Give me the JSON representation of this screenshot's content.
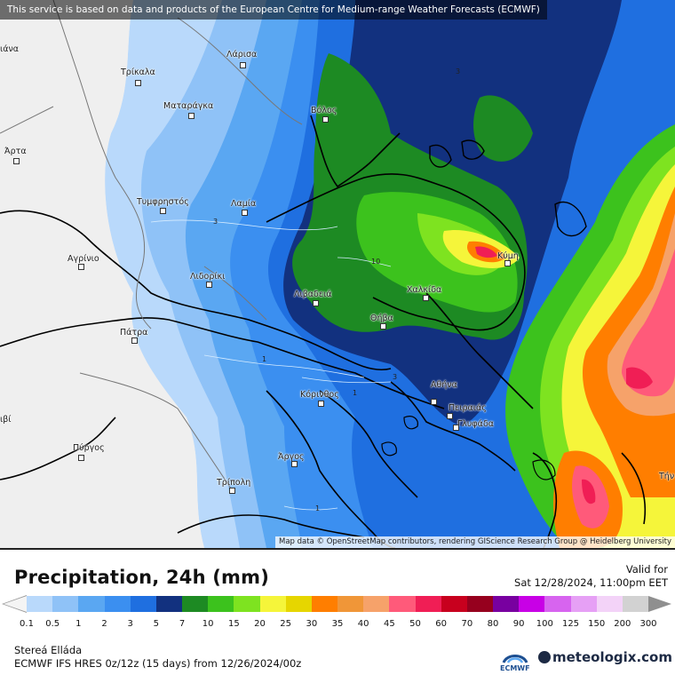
{
  "map": {
    "notice": "This service is based on data and products of the European Centre for Medium-range Weather Forecasts (ECMWF)",
    "attribution": "Map data © OpenStreetMap contributors, rendering GIScience Research Group @ Heidelberg University",
    "cities": [
      {
        "name": "Τρίκαλα"
      },
      {
        "name": "Λάρισα"
      },
      {
        "name": "Βόλος"
      },
      {
        "name": "Ματαράγκα"
      },
      {
        "name": "Άρτα"
      },
      {
        "name": "Τυμφρηστός"
      },
      {
        "name": "Λαμία"
      },
      {
        "name": "Αγρίνιο"
      },
      {
        "name": "Λιδορίκι"
      },
      {
        "name": "Λιβαδειά"
      },
      {
        "name": "Χαλκίδα"
      },
      {
        "name": "Κύμη"
      },
      {
        "name": "Θήβα"
      },
      {
        "name": "Πάτρα"
      },
      {
        "name": "Κόρινθος"
      },
      {
        "name": "Αθήνα"
      },
      {
        "name": "Πειραιάς"
      },
      {
        "name": "Γλυφάδα"
      },
      {
        "name": "Πύργος"
      },
      {
        "name": "Άργος"
      },
      {
        "name": "Τρίπολη"
      }
    ],
    "edge_labels": {
      "left_top": "ιάνα",
      "left_bottom": "ιβί",
      "right_bottom": "Τήν"
    },
    "contour_labels": {
      "c3a": "3",
      "c3b": "3",
      "c10": "10",
      "c1a": "1",
      "c1b": "1",
      "c3c": "3",
      "c1c": "1"
    }
  },
  "legend": {
    "title": "Precipitation, 24h (mm)",
    "valid_label": "Valid for",
    "valid_time": "Sat 12/28/2024, 11:00pm EET",
    "ticks": [
      "0.1",
      "0.5",
      "1",
      "2",
      "3",
      "5",
      "7",
      "10",
      "15",
      "20",
      "25",
      "30",
      "35",
      "40",
      "45",
      "50",
      "60",
      "70",
      "80",
      "90",
      "100",
      "125",
      "150",
      "200",
      "300"
    ],
    "colors": [
      "#b9d9fb",
      "#8fc2f7",
      "#5aa7f2",
      "#3b8ff0",
      "#1f6fe0",
      "#12317f",
      "#1d8a23",
      "#3cc21d",
      "#7ee320",
      "#f5f53a",
      "#e6d600",
      "#ff7e00",
      "#f09638",
      "#f6a26a",
      "#ff5a7a",
      "#f01e55",
      "#c8001e",
      "#96001e",
      "#7800a0",
      "#c800e6",
      "#d764ef",
      "#e6a0f5",
      "#f3d3f8",
      "#d2d2d2"
    ],
    "region": "Stereá Elláda",
    "model": "ECMWF IFS HRES 0z/12z (15 days) from  12/26/2024/00z",
    "ecmwf_logo_text": "ECMWF",
    "brand": "meteologix.com"
  }
}
